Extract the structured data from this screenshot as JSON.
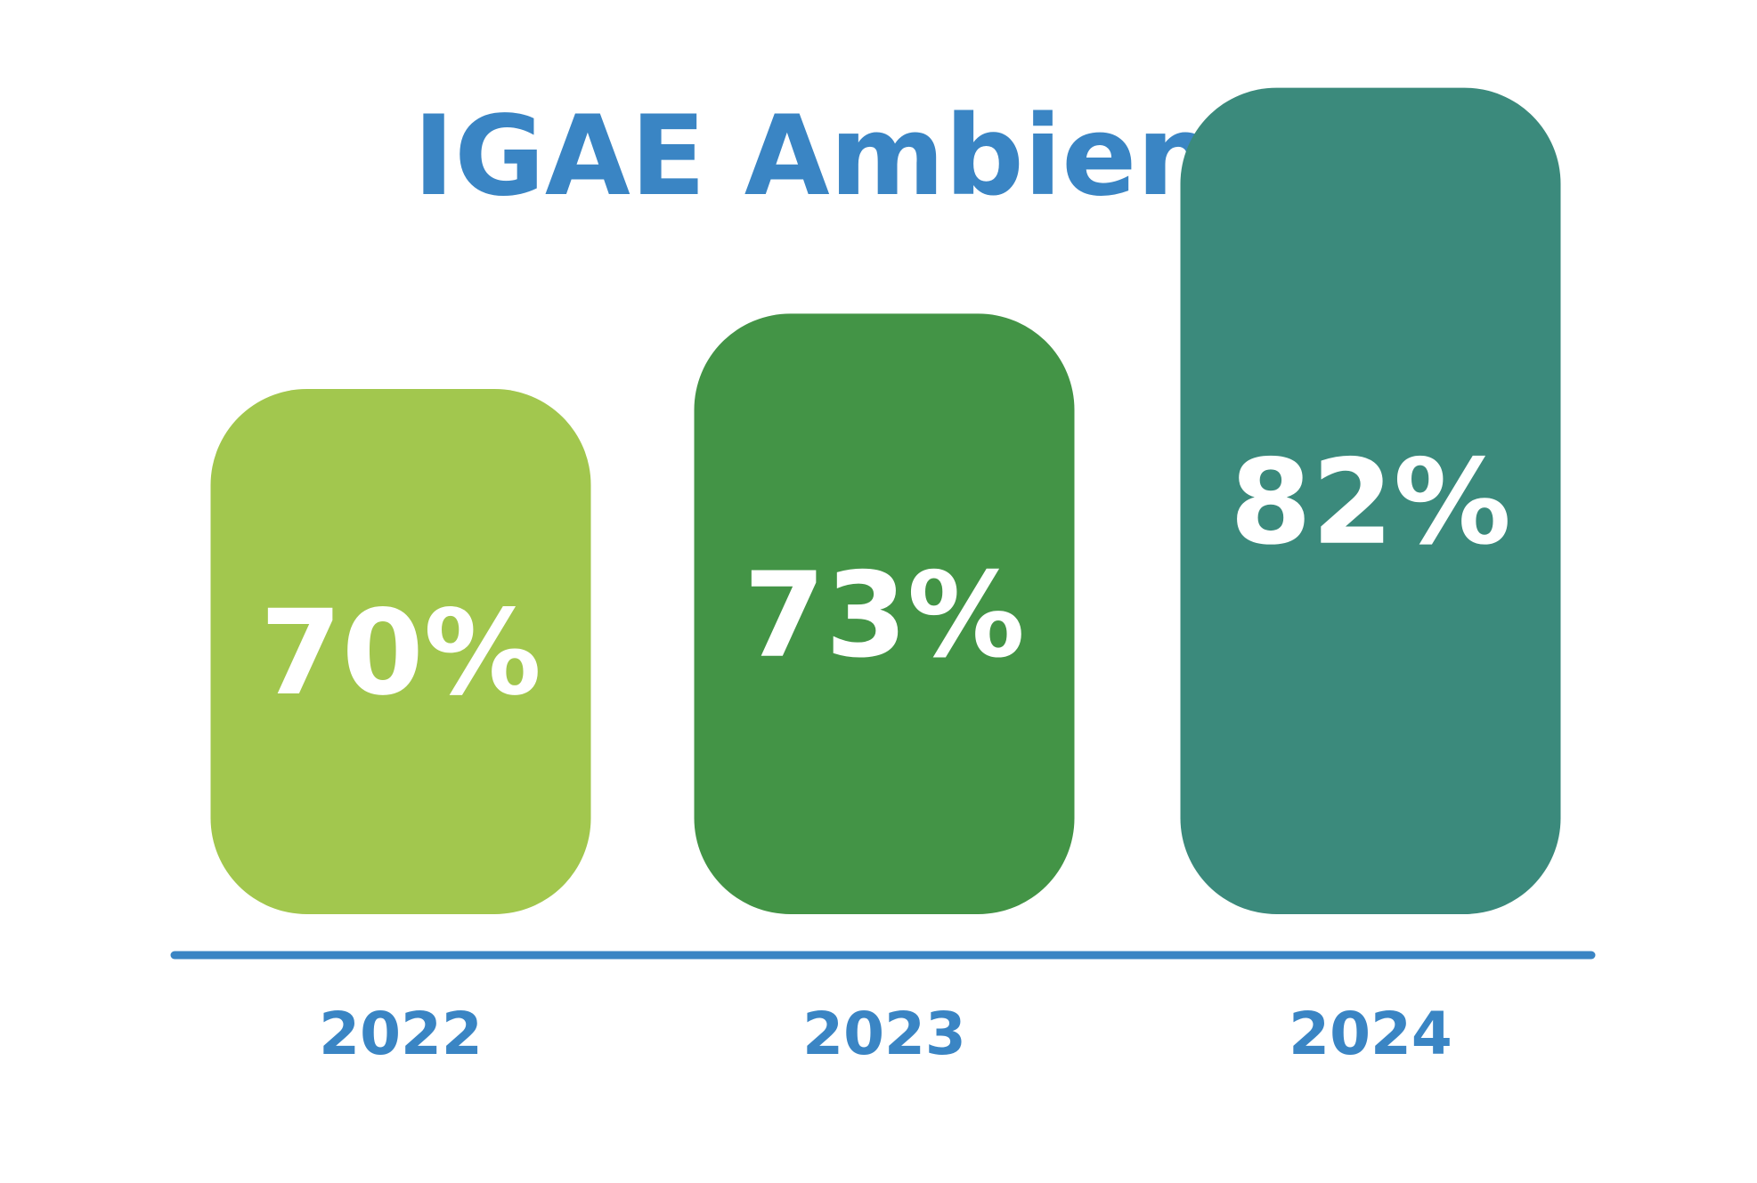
{
  "chart_data": {
    "type": "bar",
    "title": "IGAE Ambiente",
    "categories": [
      "2022",
      "2023",
      "2024"
    ],
    "values": [
      70,
      73,
      82
    ],
    "value_labels": [
      "70%",
      "73%",
      "82%"
    ],
    "unit": "%",
    "xlabel": "",
    "ylabel": "",
    "grid": false,
    "legend": "none",
    "colors": {
      "title": "#3a85c4",
      "axis": "#3a85c4",
      "tick_labels": "#3a85c4",
      "value_labels": "#ffffff",
      "bars": [
        "#a2c74e",
        "#439446",
        "#3b8a7c"
      ]
    }
  }
}
